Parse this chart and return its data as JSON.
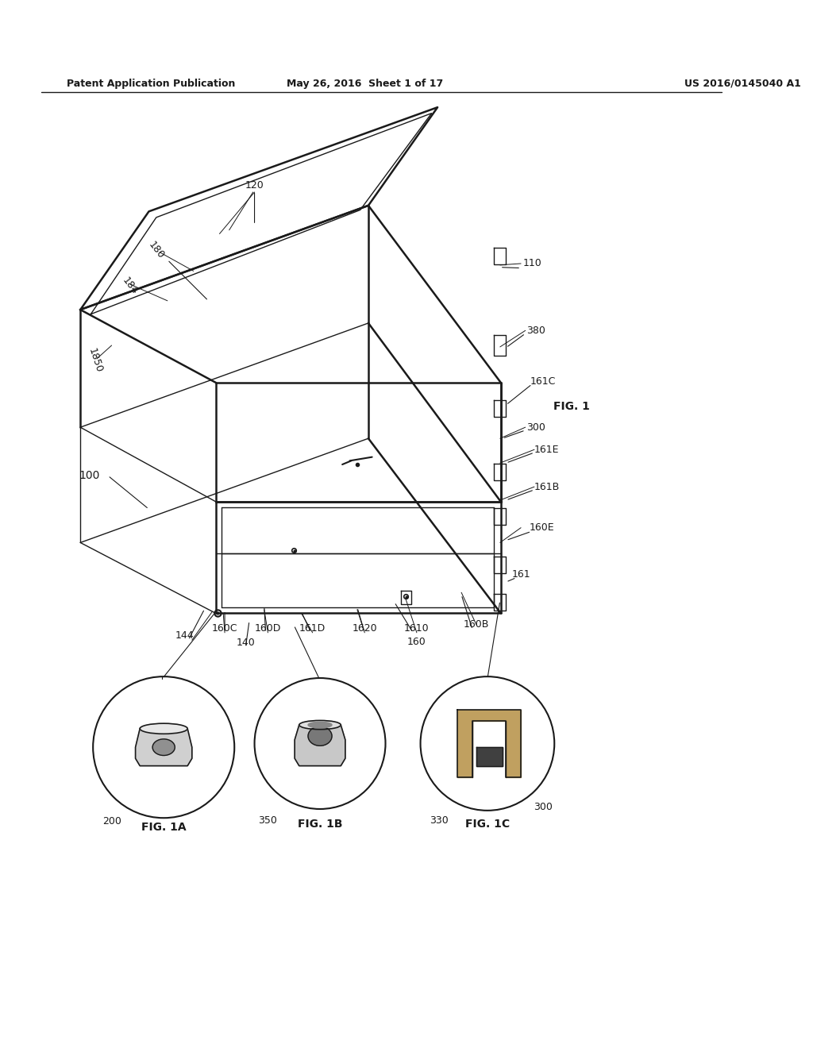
{
  "bg_color": "#ffffff",
  "header_left": "Patent Application Publication",
  "header_center": "May 26, 2016  Sheet 1 of 17",
  "header_right": "US 2016/0145040 A1",
  "fig_label": "FIG. 1",
  "fig1a_label": "FIG. 1A",
  "fig1b_label": "FIG. 1B",
  "fig1c_label": "FIG. 1C",
  "line_color": "#1a1a1a",
  "text_color": "#1a1a1a"
}
